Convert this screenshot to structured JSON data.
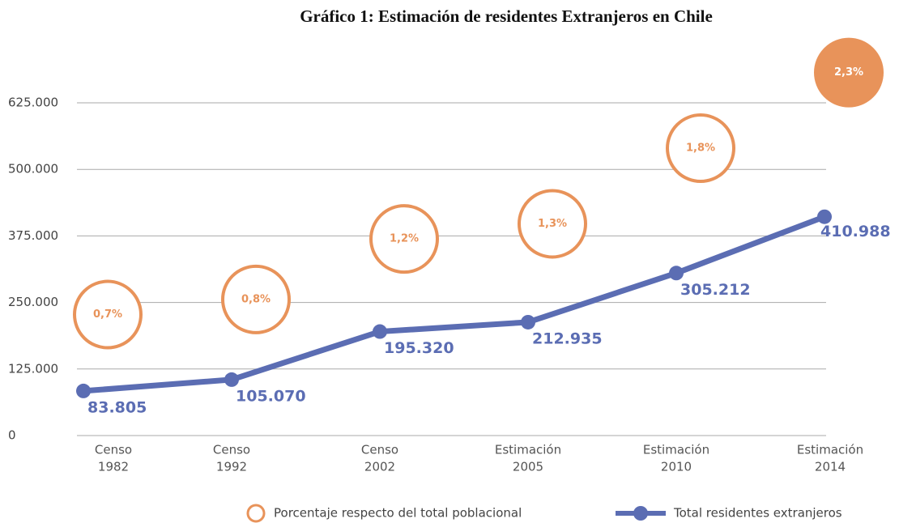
{
  "chart_data": {
    "type": "line",
    "title": "Gráfico 1: Estimación de residentes Extranjeros en Chile",
    "categories": [
      [
        "Censo",
        "1982"
      ],
      [
        "Censo",
        "1992"
      ],
      [
        "Censo",
        "2002"
      ],
      [
        "Estimación",
        "2005"
      ],
      [
        "Estimación",
        "2010"
      ],
      [
        "Estimación",
        "2014"
      ]
    ],
    "series": [
      {
        "name": "Porcentaje respecto del total poblacional",
        "color": "#e8935a",
        "axis": "y2",
        "values": [
          0.7,
          0.8,
          1.2,
          1.3,
          1.8,
          2.3
        ],
        "value_labels": [
          "0,7%",
          "0,8%",
          "1,2%",
          "1,3%",
          "1,8%",
          "2,3%"
        ]
      },
      {
        "name": "Total residentes extranjeros",
        "color": "#5b6db3",
        "values": [
          83805,
          105070,
          195320,
          212935,
          305212,
          410988
        ],
        "value_labels": [
          "83.805",
          "105.070",
          "195.320",
          "212.935",
          "305.212",
          "410.988"
        ]
      }
    ],
    "ylim": [
      0,
      625000
    ],
    "yticks": [
      0,
      {
        "value": 125000,
        "label": "125.000"
      },
      {
        "value": 250000,
        "label": "250.000"
      },
      {
        "value": 375000,
        "label": "375.000"
      },
      {
        "value": 500000,
        "label": "500.000"
      },
      {
        "value": 625000,
        "label": "625.000"
      }
    ],
    "y2lim": [
      -0.1,
      2.1
    ],
    "grid": true
  }
}
